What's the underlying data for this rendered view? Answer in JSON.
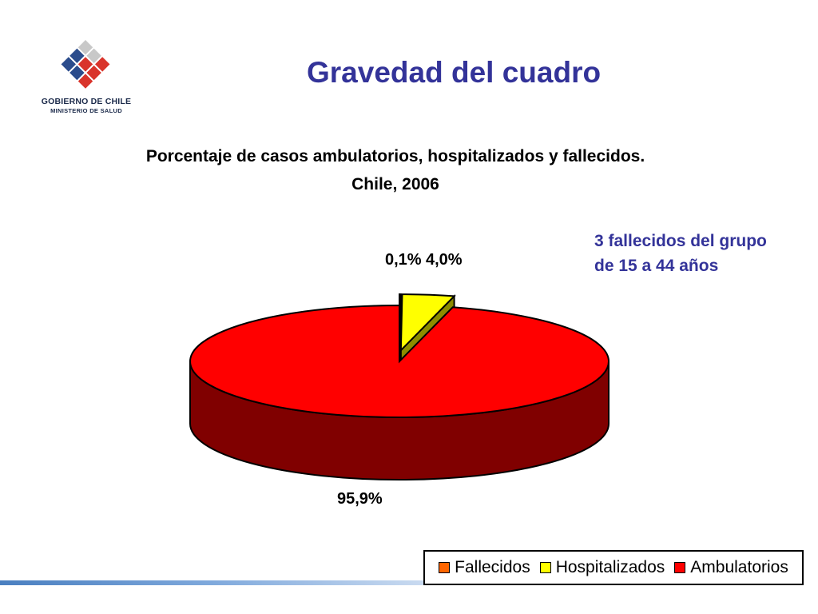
{
  "slide": {
    "title": "Gravedad del cuadro"
  },
  "logo": {
    "line1": "GOBIERNO DE CHILE",
    "line2": "MINISTERIO DE SALUD",
    "colors": [
      "#2b4c8c",
      "#d9342b",
      "#c0c0c0"
    ]
  },
  "annotation": {
    "line1": "3 fallecidos del grupo",
    "line2": "de 15 a 44 años"
  },
  "chart_data": {
    "type": "pie",
    "title_line1": "Porcentaje de casos ambulatorios, hospitalizados y fallecidos.",
    "title_line2": "Chile, 2006",
    "three_d": true,
    "slices": [
      {
        "name": "Fallecidos",
        "value": 0.1,
        "label": "0,1%",
        "color": "#ff6600"
      },
      {
        "name": "Hospitalizados",
        "value": 4.0,
        "label": "4,0%",
        "color": "#ffff00"
      },
      {
        "name": "Ambulatorios",
        "value": 95.9,
        "label": "95,9%",
        "color": "#ff0000"
      }
    ],
    "legend_position": "bottom-right"
  }
}
